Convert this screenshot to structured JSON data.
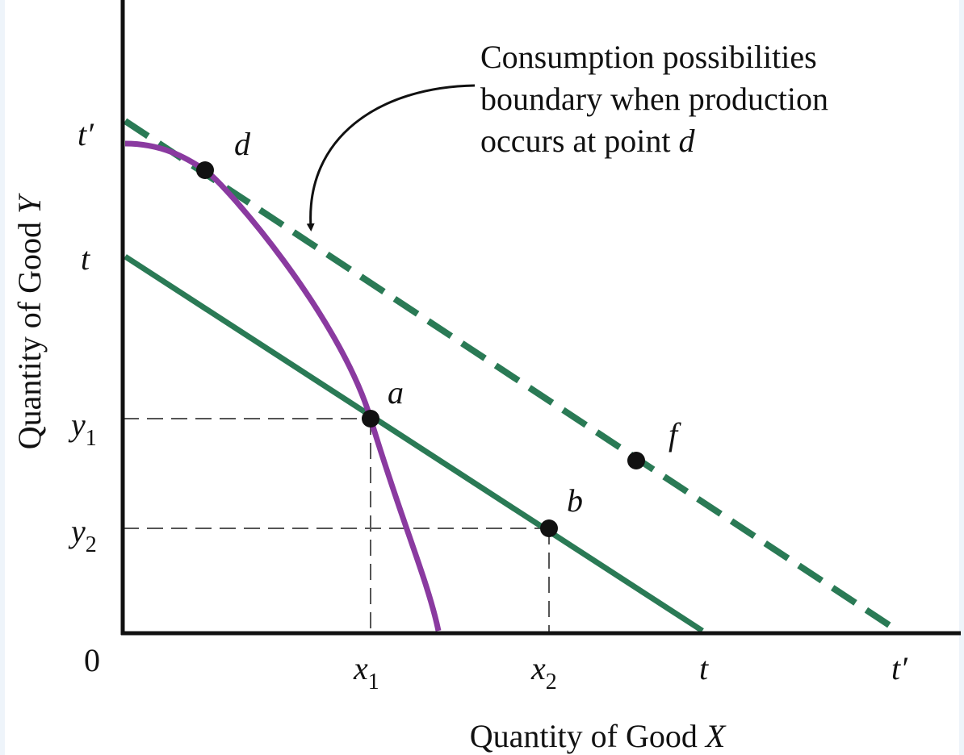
{
  "annotation": {
    "lines": [
      "Consumption possibilities",
      "boundary when production",
      "occurs at point "
    ],
    "point": "d"
  },
  "y_axis": {
    "title": {
      "text": "Quantity of Good ",
      "variable": "Y"
    },
    "labels": [
      {
        "base": "t′"
      },
      {
        "base": "t"
      },
      {
        "base": "y",
        "sub": "1"
      },
      {
        "base": "y",
        "sub": "2"
      }
    ]
  },
  "origin": "0",
  "x_axis": {
    "title": {
      "text": "Quantity of Good ",
      "variable": "X"
    },
    "labels": [
      {
        "base": "x",
        "sub": "1"
      },
      {
        "base": "x",
        "sub": "2"
      },
      {
        "base": "t"
      },
      {
        "base": "t′"
      }
    ]
  },
  "points": [
    "d",
    "a",
    "f",
    "b"
  ]
}
